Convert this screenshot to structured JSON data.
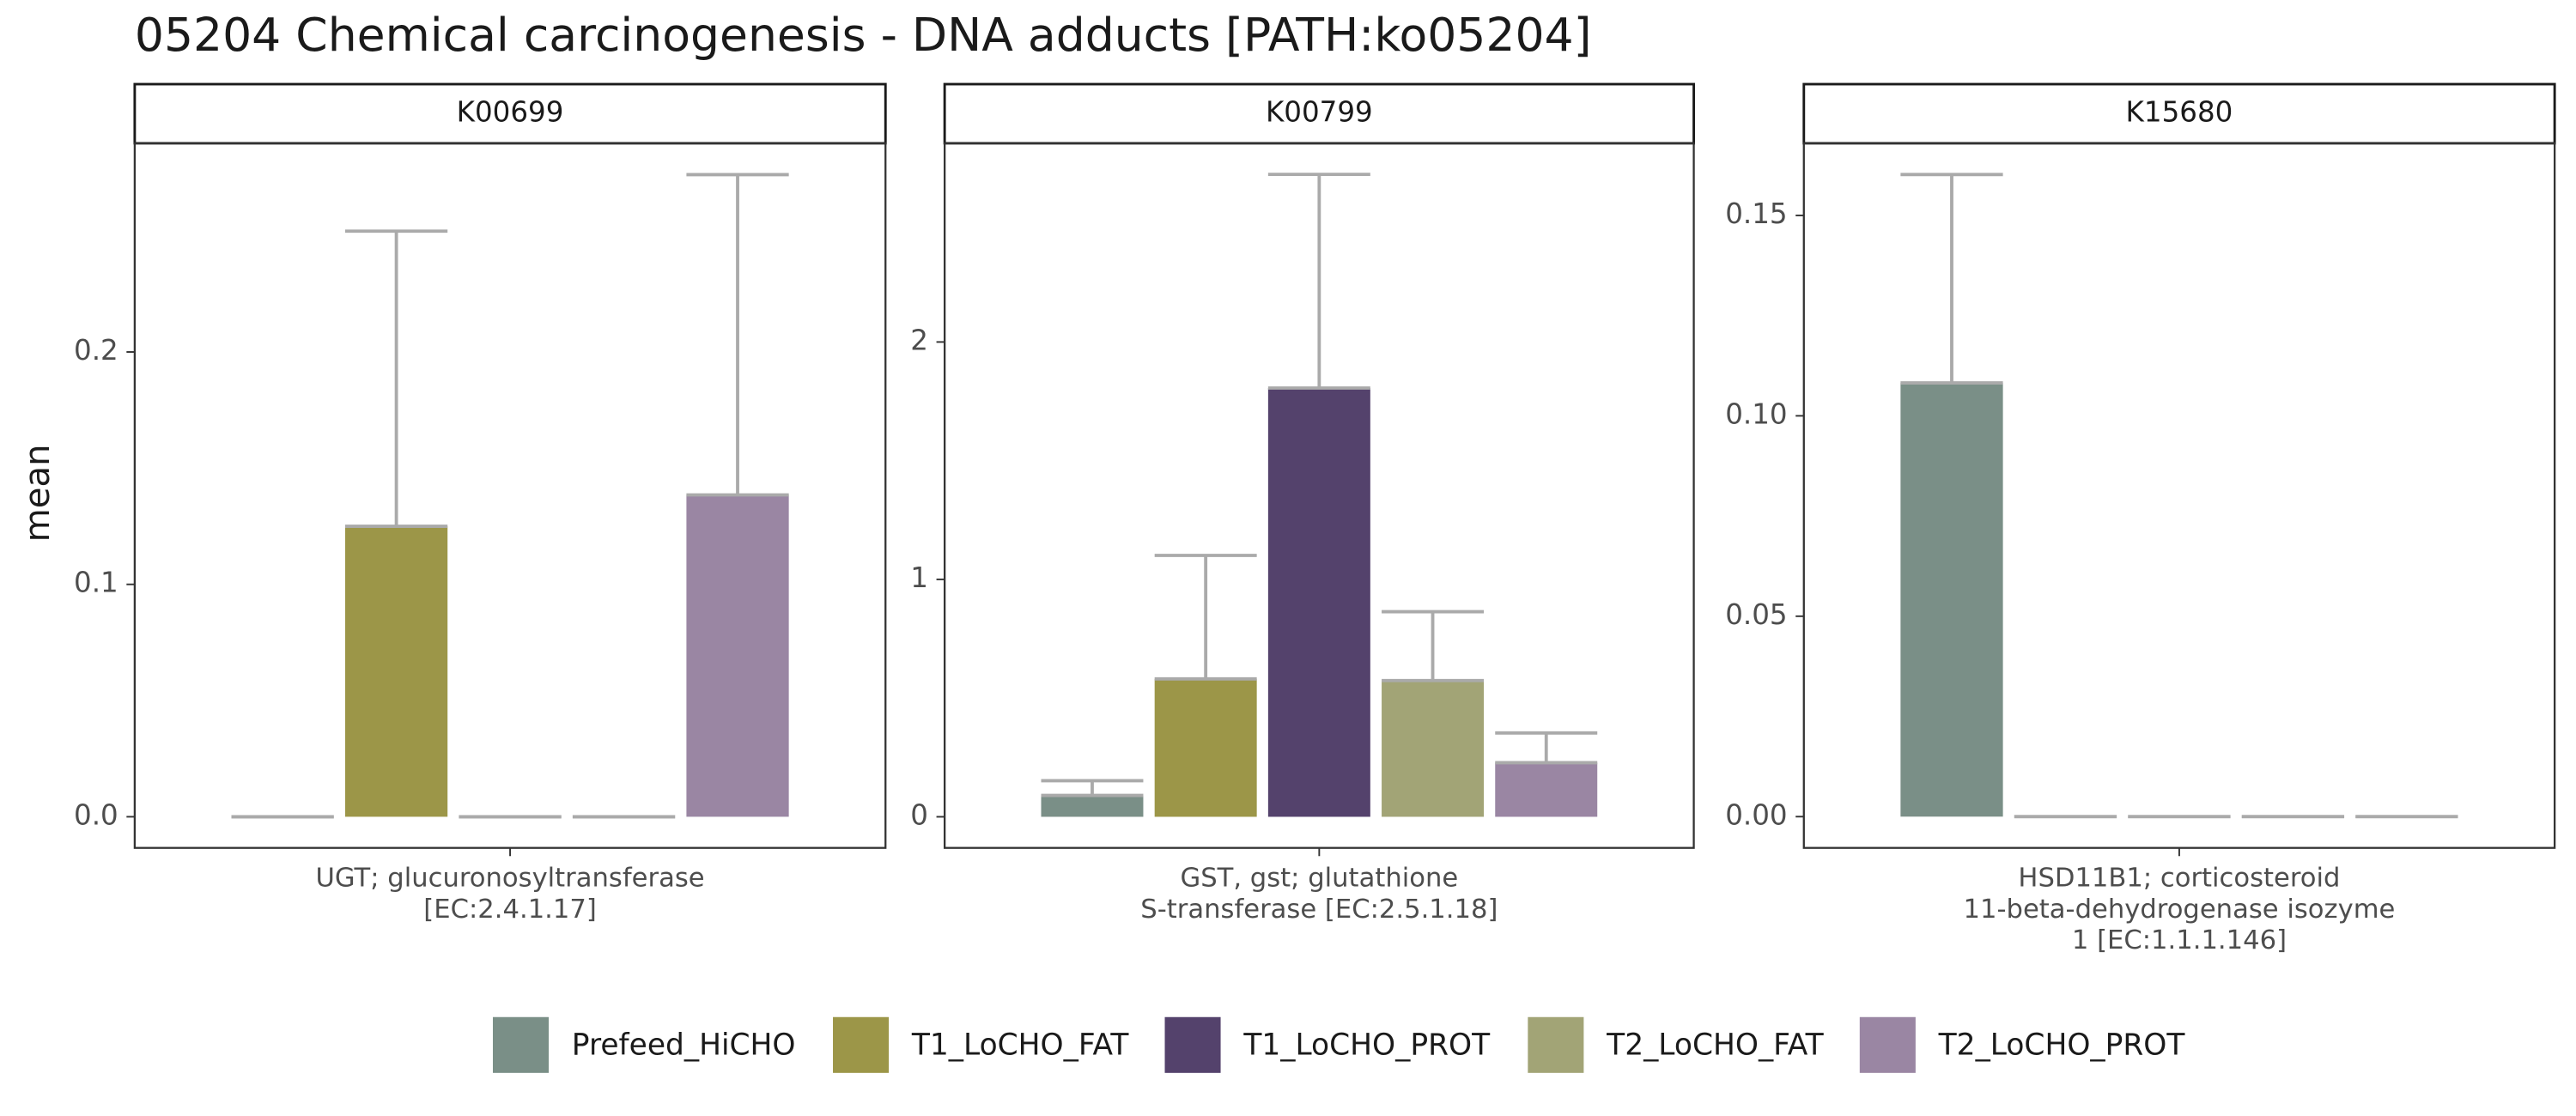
{
  "title": "05204 Chemical carcinogenesis - DNA adducts [PATH:ko05204]",
  "y_label": "mean",
  "chart_data": [
    {
      "type": "bar",
      "facet": "K00699",
      "category_lines": [
        "UGT; glucuronosyltransferase",
        "[EC:2.4.1.17]"
      ],
      "ylim": [
        -0.0134,
        0.2898
      ],
      "yticks": [
        {
          "value": 0,
          "label": "0.0"
        },
        0.1,
        0.2
      ],
      "series": [
        {
          "name": "Prefeed_HiCHO",
          "color": "#7a8f87",
          "values": [
            0
          ],
          "errors": [
            0
          ]
        },
        {
          "name": "T1_LoCHO_FAT",
          "color": "#9c9648",
          "values": [
            0.125
          ],
          "errors": [
            0.127
          ]
        },
        {
          "name": "T1_LoCHO_PROT",
          "color": "#54426c",
          "values": [
            0
          ],
          "errors": [
            0
          ]
        },
        {
          "name": "T2_LoCHO_FAT",
          "color": "#a2a476",
          "values": [
            0
          ],
          "errors": [
            0
          ]
        },
        {
          "name": "T2_LoCHO_PROT",
          "color": "#9a86a3",
          "values": [
            0.1385
          ],
          "errors": [
            0.1378
          ]
        }
      ]
    },
    {
      "type": "bar",
      "facet": "K00799",
      "category_lines": [
        "GST, gst; glutathione",
        "S-transferase [EC:2.5.1.18]"
      ],
      "ylim": [
        -0.131,
        2.837
      ],
      "yticks": [
        0,
        1,
        2
      ],
      "series": [
        {
          "name": "Prefeed_HiCHO",
          "color": "#7a8f87",
          "values": [
            0.09
          ],
          "errors": [
            0.062
          ]
        },
        {
          "name": "T1_LoCHO_FAT",
          "color": "#9c9648",
          "values": [
            0.581
          ],
          "errors": [
            0.52
          ]
        },
        {
          "name": "T1_LoCHO_PROT",
          "color": "#54426c",
          "values": [
            1.806
          ],
          "errors": [
            0.9
          ]
        },
        {
          "name": "T2_LoCHO_FAT",
          "color": "#a2a476",
          "values": [
            0.574
          ],
          "errors": [
            0.29
          ]
        },
        {
          "name": "T2_LoCHO_PROT",
          "color": "#9a86a3",
          "values": [
            0.228
          ],
          "errors": [
            0.125
          ]
        }
      ]
    },
    {
      "type": "bar",
      "facet": "K15680",
      "category_lines": [
        "HSD11B1; corticosteroid",
        "11-beta-dehydrogenase isozyme",
        "1 [EC:1.1.1.146]"
      ],
      "ylim": [
        -0.0078,
        0.168
      ],
      "yticks": [
        {
          "value": 0,
          "label": "0.00"
        },
        0.05,
        {
          "value": 0.1,
          "label": "0.10"
        },
        0.15
      ],
      "series": [
        {
          "name": "Prefeed_HiCHO",
          "color": "#7a8f87",
          "values": [
            0.1082
          ],
          "errors": [
            0.052
          ]
        },
        {
          "name": "T1_LoCHO_FAT",
          "color": "#9c9648",
          "values": [
            0
          ],
          "errors": [
            0
          ]
        },
        {
          "name": "T1_LoCHO_PROT",
          "color": "#54426c",
          "values": [
            0
          ],
          "errors": [
            0
          ]
        },
        {
          "name": "T2_LoCHO_FAT",
          "color": "#a2a476",
          "values": [
            0
          ],
          "errors": [
            0
          ]
        },
        {
          "name": "T2_LoCHO_PROT",
          "color": "#9a86a3",
          "values": [
            0
          ],
          "errors": [
            0
          ]
        }
      ]
    }
  ]
}
